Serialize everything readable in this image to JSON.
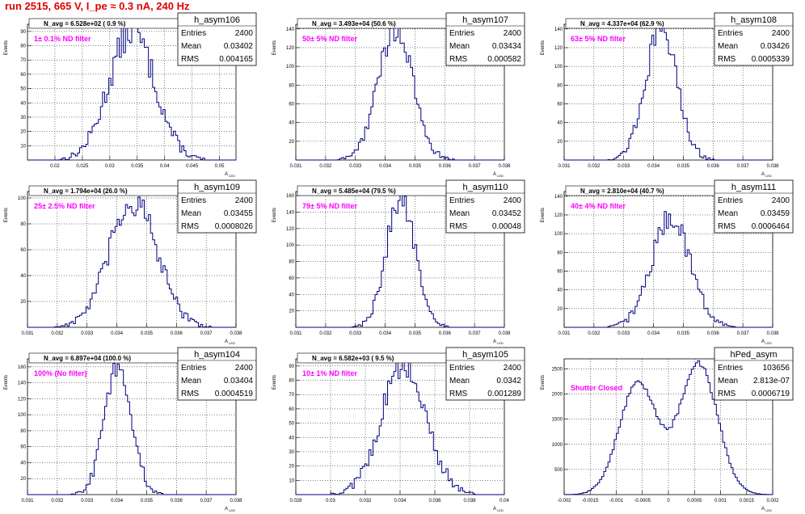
{
  "run_title": "run 2515,    665 V, I_pe ≈ 0.3 nA, 240 Hz",
  "stats_labels": {
    "entries": "Entries",
    "mean": "Mean",
    "rms": "RMS"
  },
  "ylabel": "Events",
  "xlabel": "A",
  "xlabel_sub": "LED",
  "chart_data": [
    {
      "type": "histogram",
      "name": "h_asym106",
      "navg": "N_avg = 6.528e+02 ( 0.9 %)",
      "filter": "1± 0.1% ND filter",
      "stats": {
        "entries": "2400",
        "mean": "0.03402",
        "rms": "0.004165"
      },
      "xlim": [
        0.015,
        0.053
      ],
      "ylim": [
        0,
        95
      ],
      "xticks": [
        "0.02",
        "0.025",
        "0.03",
        "0.035",
        "0.04",
        "0.045",
        "0.05"
      ],
      "yticks": [
        "10",
        "20",
        "30",
        "40",
        "50",
        "60",
        "70",
        "80",
        "90"
      ],
      "mean": 0.03402,
      "rms": 0.004165,
      "peak": 90,
      "bins": 100
    },
    {
      "type": "histogram",
      "name": "h_asym107",
      "navg": "N_avg = 3.493e+04 (50.6 %)",
      "filter": "50± 5% ND filter",
      "stats": {
        "entries": "2400",
        "mean": "0.03434",
        "rms": "0.000582"
      },
      "xlim": [
        0.031,
        0.038
      ],
      "ylim": [
        0,
        145
      ],
      "xticks": [
        "0.031",
        "0.032",
        "0.033",
        "0.034",
        "0.035",
        "0.036",
        "0.037",
        "0.038"
      ],
      "yticks": [
        "20",
        "40",
        "60",
        "80",
        "100",
        "120",
        "140"
      ],
      "mean": 0.03434,
      "rms": 0.000582,
      "peak": 140,
      "bins": 100
    },
    {
      "type": "histogram",
      "name": "h_asym108",
      "navg": "N_avg = 4.337e+04 (62.9 %)",
      "filter": "63± 5% ND filter",
      "stats": {
        "entries": "2400",
        "mean": "0.03426",
        "rms": "0.0005339"
      },
      "xlim": [
        0.031,
        0.038
      ],
      "ylim": [
        0,
        145
      ],
      "xticks": [
        "0.031",
        "0.032",
        "0.033",
        "0.034",
        "0.035",
        "0.036",
        "0.037",
        "0.038"
      ],
      "yticks": [
        "20",
        "40",
        "60",
        "80",
        "100",
        "120",
        "140"
      ],
      "mean": 0.03426,
      "rms": 0.0005339,
      "peak": 140,
      "bins": 100
    },
    {
      "type": "histogram",
      "name": "h_asym109",
      "navg": "N_avg = 1.794e+04 (26.0 %)",
      "filter": "25± 2.5% ND filter",
      "stats": {
        "entries": "2400",
        "mean": "0.03455",
        "rms": "0.0008026"
      },
      "xlim": [
        0.031,
        0.038
      ],
      "ylim": [
        0,
        105
      ],
      "xticks": [
        "0.031",
        "0.032",
        "0.033",
        "0.034",
        "0.035",
        "0.036",
        "0.037",
        "0.038"
      ],
      "yticks": [
        "20",
        "40",
        "60",
        "80",
        "100"
      ],
      "mean": 0.03455,
      "rms": 0.0008026,
      "peak": 97,
      "bins": 100
    },
    {
      "type": "histogram",
      "name": "h_asym110",
      "navg": "N_avg = 5.485e+04 (79.5 %)",
      "filter": "79± 5% ND filter",
      "stats": {
        "entries": "2400",
        "mean": "0.03452",
        "rms": "0.00048"
      },
      "xlim": [
        0.031,
        0.038
      ],
      "ylim": [
        0,
        165
      ],
      "xticks": [
        "0.031",
        "0.032",
        "0.033",
        "0.034",
        "0.035",
        "0.036",
        "0.037",
        "0.038"
      ],
      "yticks": [
        "20",
        "40",
        "60",
        "80",
        "100",
        "120",
        "140",
        "160"
      ],
      "mean": 0.03452,
      "rms": 0.00048,
      "peak": 158,
      "bins": 100
    },
    {
      "type": "histogram",
      "name": "h_asym111",
      "navg": "N_avg = 2.810e+04 (40.7 %)",
      "filter": "40± 4% ND filter",
      "stats": {
        "entries": "2400",
        "mean": "0.03459",
        "rms": "0.0006464"
      },
      "xlim": [
        0.031,
        0.038
      ],
      "ylim": [
        0,
        145
      ],
      "xticks": [
        "0.031",
        "0.032",
        "0.033",
        "0.034",
        "0.035",
        "0.036",
        "0.037",
        "0.038"
      ],
      "yticks": [
        "20",
        "40",
        "60",
        "80",
        "100",
        "120",
        "140"
      ],
      "mean": 0.03459,
      "rms": 0.0006464,
      "peak": 118,
      "bins": 100
    },
    {
      "type": "histogram",
      "name": "h_asym104",
      "navg": "N_avg = 6.897e+04 (100.0 %)",
      "filter": "100% (No filter)",
      "stats": {
        "entries": "2400",
        "mean": "0.03404",
        "rms": "0.0004519"
      },
      "xlim": [
        0.031,
        0.038
      ],
      "ylim": [
        0,
        170
      ],
      "xticks": [
        "0.031",
        "0.032",
        "0.033",
        "0.034",
        "0.035",
        "0.036",
        "0.037",
        "0.038"
      ],
      "yticks": [
        "20",
        "40",
        "60",
        "80",
        "100",
        "120",
        "140",
        "160"
      ],
      "mean": 0.03404,
      "rms": 0.0004519,
      "peak": 162,
      "bins": 100
    },
    {
      "type": "histogram",
      "name": "h_asym105",
      "navg": "N_avg = 6.582e+03 ( 9.5 %)",
      "filter": "10± 1% ND filter",
      "stats": {
        "entries": "2400",
        "mean": "0.0342",
        "rms": "0.001289"
      },
      "xlim": [
        0.028,
        0.04
      ],
      "ylim": [
        0,
        95
      ],
      "xticks": [
        "0.028",
        "0.03",
        "0.032",
        "0.034",
        "0.036",
        "0.038",
        "0.04"
      ],
      "yticks": [
        "10",
        "20",
        "30",
        "40",
        "50",
        "60",
        "70",
        "80",
        "90"
      ],
      "mean": 0.0342,
      "rms": 0.001289,
      "peak": 90,
      "bins": 100
    },
    {
      "type": "histogram",
      "name": "hPed_asym",
      "navg": "",
      "filter": "Shutter Closed",
      "stats": {
        "entries": "103656",
        "mean": "2.813e-07",
        "rms": "0.0006719"
      },
      "xlim": [
        -0.002,
        0.002
      ],
      "ylim": [
        0,
        2700
      ],
      "xticks": [
        "-0.002",
        "-0.0015",
        "-0.001",
        "-0.0005",
        "0",
        "0.0005",
        "0.001",
        "0.0015",
        "0.002"
      ],
      "yticks": [
        "500",
        "1000",
        "1500",
        "2000",
        "2500"
      ],
      "bimodal": true,
      "peak": 2600,
      "bins": 100
    }
  ]
}
